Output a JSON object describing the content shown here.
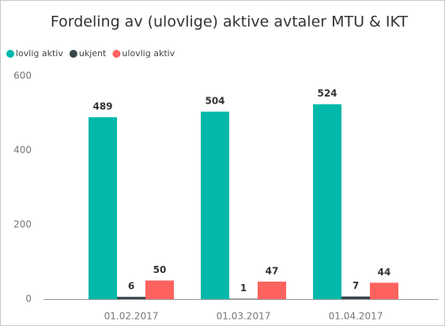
{
  "chart_data": {
    "type": "bar",
    "title": "Fordeling av (ulovlige) aktive avtaler MTU & IKT",
    "categories": [
      "01.02.2017",
      "01.03.2017",
      "01.04.2017"
    ],
    "series": [
      {
        "name": "lovlig aktiv",
        "color": "#01B8AA",
        "values": [
          489,
          504,
          524
        ]
      },
      {
        "name": "ukjent",
        "color": "#374649",
        "values": [
          6,
          1,
          7
        ]
      },
      {
        "name": "ulovlig aktiv",
        "color": "#FD625E",
        "values": [
          50,
          47,
          44
        ]
      }
    ],
    "ylim": [
      0,
      600
    ],
    "yticks": [
      0,
      200,
      400,
      600
    ],
    "grid": false,
    "legend": "top-left"
  }
}
